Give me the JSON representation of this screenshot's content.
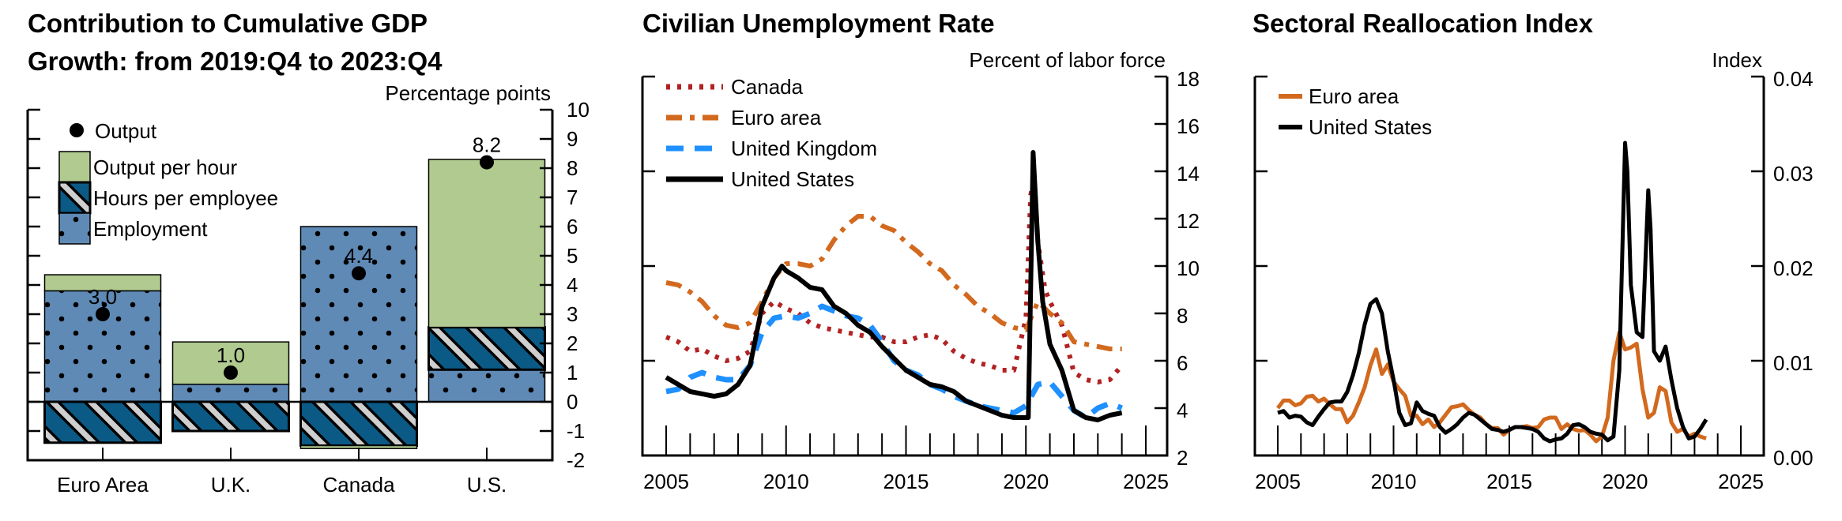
{
  "chart_data": [
    {
      "type": "bar",
      "stacked": true,
      "title_lines": [
        "Contribution to Cumulative GDP",
        "Growth: from 2019:Q4 to 2023:Q4"
      ],
      "ylabel": "Percentage points",
      "ylim": [
        -2,
        10
      ],
      "yticks": [
        "10",
        "9",
        "8",
        "7",
        "6",
        "5",
        "4",
        "3",
        "2",
        "1",
        "0",
        "-1",
        "-2"
      ],
      "ytick_values": [
        10,
        9,
        8,
        7,
        6,
        5,
        4,
        3,
        2,
        1,
        0,
        -1,
        -2
      ],
      "categories": [
        "Euro Area",
        "U.K.",
        "Canada",
        "U.S."
      ],
      "series": [
        {
          "name": "Employment",
          "color": "#5f8ab5",
          "values": [
            3.8,
            0.6,
            6.0,
            1.1
          ]
        },
        {
          "name": "Hours per employee",
          "color": "#0b5a86",
          "values": [
            -1.4,
            -1.0,
            -1.5,
            1.45
          ]
        },
        {
          "name": "Output per hour",
          "color": "#b0ca8f",
          "values": [
            0.55,
            1.45,
            -0.1,
            5.75
          ]
        }
      ],
      "output": {
        "name": "Output",
        "values": [
          3.0,
          1.0,
          4.4,
          8.2
        ],
        "labels": [
          "3.0",
          "1.0",
          "4.4",
          "8.2"
        ]
      },
      "legend": [
        "Output",
        "Output per hour",
        "Hours per employee",
        "Employment"
      ],
      "legend_position": "top-left"
    },
    {
      "type": "line",
      "title": "Civilian Unemployment Rate",
      "ylabel": "Percent of labor force",
      "ylim": [
        2,
        18
      ],
      "yticks": [
        "18",
        "16",
        "14",
        "12",
        "10",
        "8",
        "6",
        "4",
        "2"
      ],
      "ytick_values": [
        18,
        16,
        14,
        12,
        10,
        8,
        6,
        4,
        2
      ],
      "xlim": [
        2005,
        2025
      ],
      "xticks": [
        "2005",
        "2010",
        "2015",
        "2020",
        "2025"
      ],
      "xtick_values": [
        2005,
        2010,
        2015,
        2020,
        2025
      ],
      "legend_position": "top-left",
      "series": [
        {
          "name": "Canada",
          "color": "#b22222",
          "style": "dotted",
          "x": [
            2005,
            2005.5,
            2006,
            2006.5,
            2007,
            2007.5,
            2008,
            2008.5,
            2009,
            2009.5,
            2010,
            2010.5,
            2011,
            2011.5,
            2012,
            2012.5,
            2013,
            2013.5,
            2014,
            2014.5,
            2015,
            2015.5,
            2016,
            2016.5,
            2017,
            2017.5,
            2018,
            2018.5,
            2019,
            2019.5,
            2020,
            2020.2,
            2020.35,
            2020.5,
            2020.8,
            2021,
            2021.5,
            2022,
            2022.5,
            2023,
            2023.5,
            2024
          ],
          "y": [
            7.0,
            6.8,
            6.4,
            6.5,
            6.2,
            6.0,
            6.1,
            6.4,
            8.0,
            8.5,
            8.2,
            8.0,
            7.6,
            7.4,
            7.3,
            7.2,
            7.1,
            7.0,
            7.0,
            6.8,
            6.8,
            7.0,
            7.1,
            6.9,
            6.4,
            6.1,
            5.9,
            5.8,
            5.6,
            5.6,
            7.8,
            13.0,
            13.7,
            11.0,
            9.0,
            8.5,
            7.5,
            5.5,
            5.2,
            5.1,
            5.2,
            5.8
          ]
        },
        {
          "name": "Euro area",
          "color": "#d2691e",
          "style": "dashdot",
          "x": [
            2005,
            2005.5,
            2006,
            2006.5,
            2007,
            2007.5,
            2008,
            2008.5,
            2009,
            2009.5,
            2010,
            2010.5,
            2011,
            2011.5,
            2012,
            2012.5,
            2013,
            2013.5,
            2014,
            2014.5,
            2015,
            2015.5,
            2016,
            2016.5,
            2017,
            2017.5,
            2018,
            2018.5,
            2019,
            2019.5,
            2020,
            2020.5,
            2021,
            2021.5,
            2022,
            2022.5,
            2023,
            2023.5,
            2024
          ],
          "y": [
            9.3,
            9.2,
            8.9,
            8.5,
            7.9,
            7.5,
            7.4,
            7.6,
            8.5,
            9.5,
            10.1,
            10.1,
            10.0,
            10.3,
            11.1,
            11.7,
            12.1,
            12.1,
            11.7,
            11.5,
            11.0,
            10.6,
            10.1,
            9.8,
            9.2,
            8.8,
            8.3,
            8.0,
            7.6,
            7.4,
            7.3,
            8.5,
            8.0,
            7.6,
            6.8,
            6.7,
            6.6,
            6.5,
            6.5
          ]
        },
        {
          "name": "United Kingdom",
          "color": "#1e90ff",
          "style": "dashed",
          "x": [
            2005,
            2005.5,
            2006,
            2006.5,
            2007,
            2007.5,
            2008,
            2008.5,
            2009,
            2009.5,
            2010,
            2010.5,
            2011,
            2011.5,
            2012,
            2012.5,
            2013,
            2013.5,
            2014,
            2014.5,
            2015,
            2015.5,
            2016,
            2016.5,
            2017,
            2017.5,
            2018,
            2018.5,
            2019,
            2019.5,
            2020,
            2020.5,
            2021,
            2021.5,
            2022,
            2022.5,
            2023,
            2023.5,
            2024
          ],
          "y": [
            4.7,
            4.8,
            5.3,
            5.5,
            5.3,
            5.2,
            5.2,
            5.8,
            7.2,
            7.8,
            7.9,
            7.8,
            8.0,
            8.3,
            8.1,
            7.9,
            7.8,
            7.5,
            6.8,
            6.0,
            5.6,
            5.4,
            5.0,
            4.8,
            4.5,
            4.3,
            4.1,
            4.0,
            3.9,
            3.8,
            4.1,
            5.0,
            5.1,
            4.5,
            3.9,
            3.6,
            4.0,
            4.2,
            4.0
          ]
        },
        {
          "name": "United States",
          "color": "#000000",
          "style": "solid",
          "x": [
            2005,
            2005.5,
            2006,
            2006.5,
            2007,
            2007.5,
            2008,
            2008.5,
            2009,
            2009.5,
            2009.83,
            2010,
            2010.5,
            2011,
            2011.5,
            2012,
            2012.5,
            2013,
            2013.5,
            2014,
            2014.5,
            2015,
            2015.5,
            2016,
            2016.5,
            2017,
            2017.5,
            2018,
            2018.5,
            2019,
            2019.5,
            2020.1,
            2020.3,
            2020.5,
            2020.7,
            2021,
            2021.5,
            2022,
            2022.5,
            2023,
            2023.5,
            2024
          ],
          "y": [
            5.3,
            5.0,
            4.7,
            4.6,
            4.5,
            4.6,
            5.0,
            5.8,
            8.3,
            9.5,
            10.0,
            9.8,
            9.5,
            9.1,
            9.0,
            8.3,
            8.0,
            7.5,
            7.2,
            6.6,
            6.1,
            5.6,
            5.3,
            5.0,
            4.9,
            4.7,
            4.3,
            4.1,
            3.9,
            3.7,
            3.6,
            3.6,
            14.8,
            11.0,
            8.5,
            6.7,
            5.6,
            3.9,
            3.6,
            3.5,
            3.7,
            3.8
          ]
        }
      ]
    },
    {
      "type": "line",
      "title": "Sectoral Reallocation Index",
      "ylabel": "Index",
      "ylim": [
        0.0,
        0.04
      ],
      "yticks": [
        "0.04",
        "0.03",
        "0.02",
        "0.01",
        "0.00"
      ],
      "ytick_values": [
        0.04,
        0.03,
        0.02,
        0.01,
        0.0
      ],
      "xlim": [
        2005,
        2025
      ],
      "xticks": [
        "2005",
        "2010",
        "2015",
        "2020",
        "2025"
      ],
      "xtick_values": [
        2005,
        2010,
        2015,
        2020,
        2025
      ],
      "legend_position": "top-left",
      "series": [
        {
          "name": "Euro area",
          "color": "#d2691e",
          "style": "solid",
          "x": [
            2005,
            2005.25,
            2005.5,
            2005.75,
            2006,
            2006.25,
            2006.5,
            2006.75,
            2007,
            2007.25,
            2007.5,
            2007.75,
            2008,
            2008.25,
            2008.5,
            2008.75,
            2009,
            2009.25,
            2009.5,
            2009.75,
            2010,
            2010.25,
            2010.5,
            2010.75,
            2011,
            2011.25,
            2011.5,
            2011.75,
            2012,
            2012.25,
            2012.5,
            2012.75,
            2013,
            2013.25,
            2013.5,
            2013.75,
            2014,
            2014.25,
            2014.5,
            2014.75,
            2015,
            2015.25,
            2015.5,
            2015.75,
            2016,
            2016.25,
            2016.5,
            2016.75,
            2017,
            2017.25,
            2017.5,
            2017.75,
            2018,
            2018.25,
            2018.5,
            2018.75,
            2019,
            2019.25,
            2019.5,
            2019.75,
            2020,
            2020.25,
            2020.5,
            2020.75,
            2021,
            2021.25,
            2021.5,
            2021.75,
            2022,
            2022.25,
            2022.5,
            2022.75,
            2023,
            2023.25,
            2023.5
          ],
          "y": [
            0.005,
            0.0058,
            0.0058,
            0.0053,
            0.0055,
            0.0062,
            0.0063,
            0.0057,
            0.006,
            0.0054,
            0.0049,
            0.0049,
            0.0035,
            0.0042,
            0.0056,
            0.0072,
            0.0095,
            0.0112,
            0.0086,
            0.0096,
            0.0078,
            0.007,
            0.0063,
            0.0042,
            0.0042,
            0.0033,
            0.0038,
            0.003,
            0.0035,
            0.0043,
            0.0051,
            0.0052,
            0.0054,
            0.0048,
            0.0043,
            0.004,
            0.0033,
            0.0029,
            0.0029,
            0.0022,
            0.0027,
            0.003,
            0.003,
            0.0031,
            0.0029,
            0.003,
            0.0038,
            0.004,
            0.004,
            0.0028,
            0.0033,
            0.0028,
            0.0026,
            0.0027,
            0.0022,
            0.0015,
            0.002,
            0.004,
            0.01,
            0.013,
            0.0112,
            0.0114,
            0.0118,
            0.007,
            0.004,
            0.0045,
            0.0072,
            0.0068,
            0.0035,
            0.0025,
            0.0028,
            0.002,
            0.0023,
            0.002,
            0.0018
          ]
        },
        {
          "name": "United States",
          "color": "#000000",
          "style": "solid",
          "x": [
            2005,
            2005.25,
            2005.5,
            2005.75,
            2006,
            2006.25,
            2006.5,
            2006.75,
            2007,
            2007.25,
            2007.5,
            2007.75,
            2008,
            2008.25,
            2008.5,
            2008.75,
            2009,
            2009.25,
            2009.5,
            2009.75,
            2010,
            2010.25,
            2010.5,
            2010.75,
            2011,
            2011.25,
            2011.5,
            2011.75,
            2012,
            2012.25,
            2012.5,
            2012.75,
            2013,
            2013.25,
            2013.5,
            2013.75,
            2014,
            2014.25,
            2014.5,
            2014.75,
            2015,
            2015.25,
            2015.5,
            2015.75,
            2016,
            2016.25,
            2016.5,
            2016.75,
            2017,
            2017.25,
            2017.5,
            2017.75,
            2018,
            2018.25,
            2018.5,
            2018.75,
            2019,
            2019.25,
            2019.5,
            2019.75,
            2020,
            2020.1,
            2020.25,
            2020.5,
            2020.75,
            2021,
            2021.1,
            2021.25,
            2021.5,
            2021.75,
            2022,
            2022.25,
            2022.5,
            2022.75,
            2023,
            2023.25,
            2023.5
          ],
          "y": [
            0.0045,
            0.0047,
            0.004,
            0.0042,
            0.0041,
            0.0035,
            0.0032,
            0.0041,
            0.0049,
            0.0056,
            0.0057,
            0.0057,
            0.0067,
            0.0085,
            0.0108,
            0.0138,
            0.016,
            0.0165,
            0.015,
            0.011,
            0.008,
            0.0045,
            0.0032,
            0.0034,
            0.0056,
            0.0047,
            0.0044,
            0.0042,
            0.003,
            0.0024,
            0.0028,
            0.0033,
            0.004,
            0.0045,
            0.0043,
            0.0038,
            0.0033,
            0.0028,
            0.0027,
            0.0025,
            0.0027,
            0.003,
            0.003,
            0.0029,
            0.0028,
            0.0025,
            0.0018,
            0.0015,
            0.0017,
            0.0018,
            0.0023,
            0.0032,
            0.0033,
            0.003,
            0.0025,
            0.0023,
            0.0022,
            0.0016,
            0.002,
            0.009,
            0.033,
            0.03,
            0.018,
            0.013,
            0.0125,
            0.028,
            0.024,
            0.011,
            0.01,
            0.0115,
            0.008,
            0.005,
            0.003,
            0.0018,
            0.002,
            0.0028,
            0.0038
          ]
        }
      ]
    }
  ]
}
